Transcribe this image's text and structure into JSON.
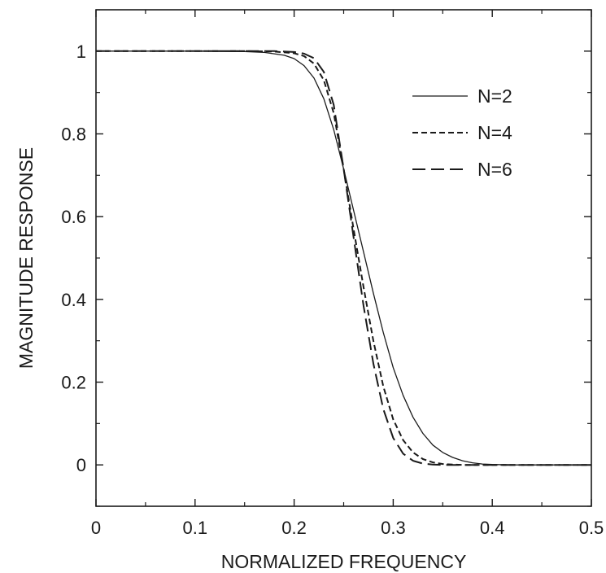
{
  "chart_data": {
    "type": "line",
    "title": "",
    "xlabel": "NORMALIZED FREQUENCY",
    "ylabel": "MAGNITUDE RESPONSE",
    "xlim": [
      0,
      0.5
    ],
    "ylim": [
      -0.1,
      1.1
    ],
    "xticks": [
      0,
      0.1,
      0.2,
      0.3,
      0.4,
      0.5
    ],
    "xtick_labels": [
      "0",
      "0.1",
      "0.2",
      "0.3",
      "0.4",
      "0.5"
    ],
    "yticks": [
      0,
      0.2,
      0.4,
      0.6,
      0.8,
      1
    ],
    "ytick_labels": [
      "0",
      "0.2",
      "0.4",
      "0.6",
      "0.8",
      "1"
    ],
    "grid": false,
    "legend_position": "top-right",
    "series": [
      {
        "name": "N=2",
        "line_style": "solid",
        "color": "#1a1a1a",
        "x": [
          0,
          0.05,
          0.1,
          0.15,
          0.17,
          0.19,
          0.2,
          0.21,
          0.22,
          0.23,
          0.24,
          0.25,
          0.26,
          0.27,
          0.28,
          0.29,
          0.3,
          0.31,
          0.32,
          0.33,
          0.34,
          0.35,
          0.36,
          0.37,
          0.38,
          0.39,
          0.4,
          0.42,
          0.45,
          0.5
        ],
        "y": [
          1,
          1,
          1,
          0.999,
          0.997,
          0.99,
          0.982,
          0.965,
          0.935,
          0.885,
          0.81,
          0.715,
          0.615,
          0.515,
          0.415,
          0.32,
          0.235,
          0.168,
          0.115,
          0.076,
          0.048,
          0.03,
          0.018,
          0.01,
          0.005,
          0.002,
          0.001,
          0,
          0,
          0
        ]
      },
      {
        "name": "N=4",
        "line_style": "dashed",
        "color": "#1a1a1a",
        "x": [
          0,
          0.05,
          0.1,
          0.15,
          0.18,
          0.2,
          0.21,
          0.22,
          0.23,
          0.24,
          0.25,
          0.26,
          0.27,
          0.28,
          0.29,
          0.3,
          0.31,
          0.32,
          0.33,
          0.34,
          0.35,
          0.36,
          0.37,
          0.38,
          0.4,
          0.45,
          0.5
        ],
        "y": [
          1,
          1,
          1,
          1,
          0.999,
          0.995,
          0.988,
          0.97,
          0.93,
          0.85,
          0.715,
          0.57,
          0.43,
          0.3,
          0.19,
          0.11,
          0.06,
          0.03,
          0.014,
          0.006,
          0.002,
          0.001,
          0,
          0,
          0,
          0,
          0
        ]
      },
      {
        "name": "N=6",
        "line_style": "long-dash",
        "color": "#1a1a1a",
        "x": [
          0,
          0.05,
          0.1,
          0.15,
          0.18,
          0.2,
          0.21,
          0.22,
          0.23,
          0.24,
          0.25,
          0.26,
          0.27,
          0.28,
          0.29,
          0.3,
          0.31,
          0.32,
          0.33,
          0.34,
          0.35,
          0.36,
          0.38,
          0.4,
          0.45,
          0.5
        ],
        "y": [
          1,
          1,
          1,
          1,
          1,
          0.998,
          0.994,
          0.983,
          0.95,
          0.87,
          0.715,
          0.55,
          0.385,
          0.245,
          0.135,
          0.065,
          0.027,
          0.01,
          0.003,
          0.001,
          0,
          0,
          0,
          0,
          0,
          0
        ]
      }
    ]
  }
}
